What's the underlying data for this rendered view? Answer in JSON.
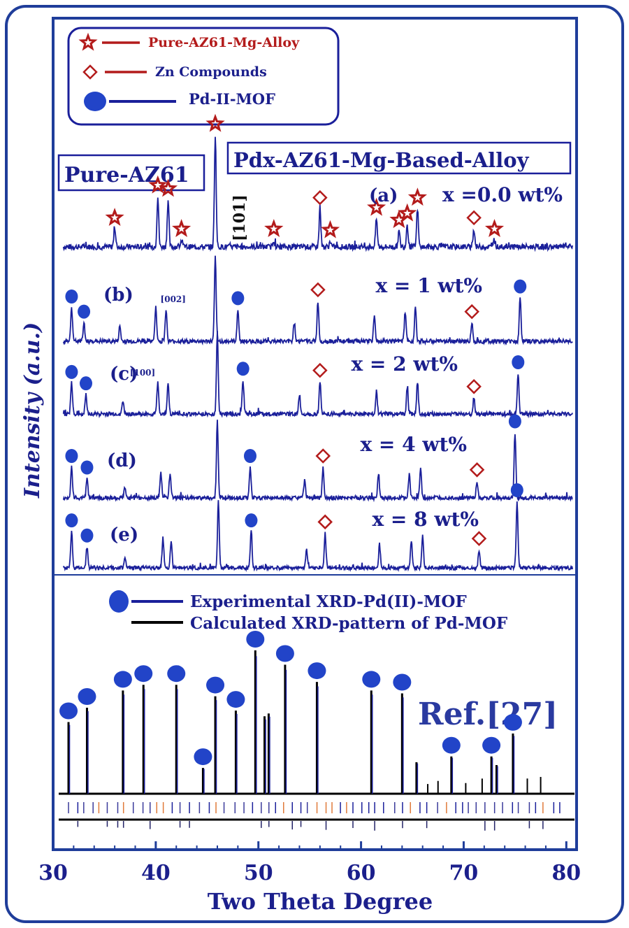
{
  "colors": {
    "frame": "#1f3d9a",
    "navy_text": "#1b1f8c",
    "red": "#b31b1b",
    "pattern_blue": "#1a1f9a",
    "marker_blue": "#2244c8",
    "calc_black": "#000000"
  },
  "chart_data": {
    "type": "line",
    "title": "",
    "xlabel": "Two Theta Degree",
    "ylabel": "Intensity (a.u.)",
    "xlim": [
      30,
      81
    ],
    "x_ticks": [
      "30",
      "40",
      "50",
      "60",
      "70",
      "80"
    ],
    "legend_top": [
      {
        "marker": "star",
        "label": "Pure-AZ61-Mg-Alloy",
        "color": "#b31b1b"
      },
      {
        "marker": "diamond",
        "label": "Zn Compounds",
        "color": "#b31b1b"
      },
      {
        "marker": "circle",
        "label": "Pd-II-MOF",
        "color": "#1a1f9a"
      }
    ],
    "label_pure": "Pure-AZ61",
    "label_pdx": "Pdx-AZ61-Mg-Based-Alloy",
    "series": [
      {
        "name": "(a)",
        "composition": "x =0.0 wt%",
        "peaks": [
          [
            36.0,
            0.16
          ],
          [
            40.2,
            0.45
          ],
          [
            41.2,
            0.42
          ],
          [
            42.5,
            0.06
          ],
          [
            45.8,
            1.0
          ],
          [
            51.5,
            0.06
          ],
          [
            56.0,
            0.34
          ],
          [
            57.0,
            0.05
          ],
          [
            61.5,
            0.25
          ],
          [
            63.7,
            0.14
          ],
          [
            64.5,
            0.2
          ],
          [
            65.5,
            0.34
          ],
          [
            71.0,
            0.16
          ],
          [
            73.0,
            0.06
          ]
        ],
        "markers": [
          {
            "x": 36.0,
            "type": "star"
          },
          {
            "x": 40.2,
            "type": "star"
          },
          {
            "x": 41.2,
            "type": "star"
          },
          {
            "x": 42.5,
            "type": "star"
          },
          {
            "x": 45.8,
            "type": "star"
          },
          {
            "x": 51.5,
            "type": "star"
          },
          {
            "x": 56.0,
            "type": "diamond"
          },
          {
            "x": 57.0,
            "type": "star"
          },
          {
            "x": 61.5,
            "type": "star"
          },
          {
            "x": 63.7,
            "type": "star"
          },
          {
            "x": 64.5,
            "type": "star"
          },
          {
            "x": 65.5,
            "type": "star"
          },
          {
            "x": 71.0,
            "type": "diamond"
          },
          {
            "x": 73.0,
            "type": "star"
          }
        ]
      },
      {
        "name": "(b)",
        "composition": "x = 1 wt%",
        "peaks": [
          [
            31.8,
            0.4
          ],
          [
            33.0,
            0.22
          ],
          [
            36.5,
            0.18
          ],
          [
            40.0,
            0.4
          ],
          [
            41.0,
            0.38
          ],
          [
            45.8,
            1.0
          ],
          [
            48.0,
            0.38
          ],
          [
            53.5,
            0.22
          ],
          [
            55.8,
            0.48
          ],
          [
            61.3,
            0.3
          ],
          [
            64.3,
            0.34
          ],
          [
            65.3,
            0.42
          ],
          [
            70.8,
            0.22
          ],
          [
            75.5,
            0.52
          ]
        ],
        "markers": [
          {
            "x": 31.8,
            "type": "circle"
          },
          {
            "x": 33.0,
            "type": "circle"
          },
          {
            "x": 48.0,
            "type": "circle"
          },
          {
            "x": 55.8,
            "type": "diamond"
          },
          {
            "x": 70.8,
            "type": "diamond"
          },
          {
            "x": 75.5,
            "type": "circle"
          }
        ]
      },
      {
        "name": "(c)",
        "composition": "x = 2 wt%",
        "peaks": [
          [
            31.8,
            0.38
          ],
          [
            33.2,
            0.24
          ],
          [
            36.8,
            0.16
          ],
          [
            40.2,
            0.4
          ],
          [
            41.2,
            0.38
          ],
          [
            46.0,
            1.0
          ],
          [
            48.5,
            0.42
          ],
          [
            54.0,
            0.24
          ],
          [
            56.0,
            0.4
          ],
          [
            61.5,
            0.28
          ],
          [
            64.5,
            0.32
          ],
          [
            65.5,
            0.4
          ],
          [
            71.0,
            0.2
          ],
          [
            75.3,
            0.5
          ]
        ],
        "markers": [
          {
            "x": 31.8,
            "type": "circle"
          },
          {
            "x": 33.2,
            "type": "circle"
          },
          {
            "x": 48.5,
            "type": "circle"
          },
          {
            "x": 56.0,
            "type": "diamond"
          },
          {
            "x": 71.0,
            "type": "diamond"
          },
          {
            "x": 75.3,
            "type": "circle"
          }
        ]
      },
      {
        "name": "(d)",
        "composition": "x = 4 wt%",
        "peaks": [
          [
            31.8,
            0.4
          ],
          [
            33.3,
            0.25
          ],
          [
            37.0,
            0.14
          ],
          [
            40.5,
            0.32
          ],
          [
            41.4,
            0.3
          ],
          [
            46.0,
            1.0
          ],
          [
            49.2,
            0.4
          ],
          [
            54.5,
            0.22
          ],
          [
            56.3,
            0.4
          ],
          [
            61.7,
            0.32
          ],
          [
            64.7,
            0.3
          ],
          [
            65.8,
            0.38
          ],
          [
            71.3,
            0.22
          ],
          [
            75.0,
            0.85
          ]
        ],
        "markers": [
          {
            "x": 31.8,
            "type": "circle"
          },
          {
            "x": 33.3,
            "type": "circle"
          },
          {
            "x": 49.2,
            "type": "circle"
          },
          {
            "x": 56.3,
            "type": "diamond"
          },
          {
            "x": 71.3,
            "type": "diamond"
          },
          {
            "x": 75.0,
            "type": "circle"
          }
        ]
      },
      {
        "name": "(e)",
        "composition": "x = 8  wt%",
        "peaks": [
          [
            31.8,
            0.48
          ],
          [
            33.3,
            0.28
          ],
          [
            37.0,
            0.14
          ],
          [
            40.7,
            0.4
          ],
          [
            41.5,
            0.36
          ],
          [
            46.1,
            0.88
          ],
          [
            49.3,
            0.48
          ],
          [
            54.7,
            0.24
          ],
          [
            56.5,
            0.46
          ],
          [
            61.8,
            0.3
          ],
          [
            64.9,
            0.36
          ],
          [
            66.0,
            0.44
          ],
          [
            71.5,
            0.24
          ],
          [
            75.2,
            0.88
          ]
        ],
        "markers": [
          {
            "x": 31.8,
            "type": "circle"
          },
          {
            "x": 33.3,
            "type": "circle"
          },
          {
            "x": 49.3,
            "type": "circle"
          },
          {
            "x": 56.5,
            "type": "diamond"
          },
          {
            "x": 71.5,
            "type": "diamond"
          },
          {
            "x": 75.2,
            "type": "circle"
          }
        ]
      }
    ],
    "miller_labels": [
      {
        "text": "[101]",
        "x": 45.8
      },
      {
        "text": "[002]",
        "x": 41.0
      },
      {
        "text": "[100]",
        "x": 40.2
      }
    ],
    "reference": {
      "label": "Ref.[27]",
      "legend": [
        {
          "marker": "circle",
          "label": "Experimental XRD-Pd(II)-MOF",
          "color": "#1a1f9a"
        },
        {
          "marker": "none",
          "label": "Calculated XRD-pattern of Pd-MOF",
          "color": "#000000"
        }
      ],
      "peaks": [
        [
          31.5,
          0.5
        ],
        [
          33.3,
          0.6
        ],
        [
          36.8,
          0.72
        ],
        [
          38.8,
          0.76
        ],
        [
          42.0,
          0.76
        ],
        [
          44.6,
          0.18
        ],
        [
          45.8,
          0.68
        ],
        [
          47.8,
          0.58
        ],
        [
          49.7,
          1.0
        ],
        [
          50.6,
          0.54
        ],
        [
          51.0,
          0.56
        ],
        [
          52.6,
          0.9
        ],
        [
          55.7,
          0.78
        ],
        [
          61.0,
          0.72
        ],
        [
          64.0,
          0.7
        ],
        [
          65.4,
          0.22
        ],
        [
          68.8,
          0.26
        ],
        [
          72.7,
          0.26
        ],
        [
          73.2,
          0.2
        ],
        [
          74.8,
          0.42
        ]
      ],
      "markers": [
        31.5,
        33.3,
        36.8,
        38.8,
        42.0,
        44.6,
        45.8,
        47.8,
        49.7,
        52.6,
        55.7,
        61.0,
        64.0,
        68.8,
        72.7,
        74.8
      ]
    }
  }
}
